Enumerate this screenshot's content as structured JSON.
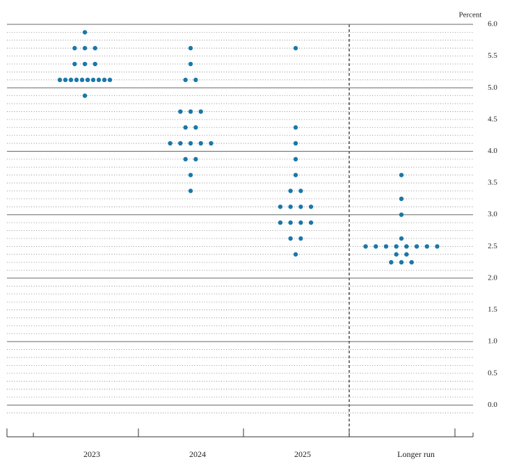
{
  "chart_data": {
    "type": "dot",
    "y_label": "Percent",
    "categories": [
      "2023",
      "2024",
      "2025",
      "Longer run"
    ],
    "values": [
      [
        5.875,
        5.625,
        5.625,
        5.625,
        5.375,
        5.375,
        5.375,
        5.125,
        5.125,
        5.125,
        5.125,
        5.125,
        5.125,
        5.125,
        5.125,
        5.125,
        5.125,
        4.875
      ],
      [
        5.625,
        5.375,
        5.125,
        5.125,
        4.625,
        4.625,
        4.625,
        4.375,
        4.375,
        4.125,
        4.125,
        4.125,
        4.125,
        4.125,
        3.875,
        3.875,
        3.625,
        3.375
      ],
      [
        5.625,
        4.375,
        4.125,
        3.875,
        3.625,
        3.375,
        3.375,
        3.125,
        3.125,
        3.125,
        3.125,
        2.875,
        2.875,
        2.875,
        2.875,
        2.625,
        2.625,
        2.375
      ],
      [
        3.625,
        3.25,
        3.0,
        2.625,
        2.5,
        2.5,
        2.5,
        2.5,
        2.5,
        2.5,
        2.5,
        2.5,
        2.375,
        2.375,
        2.25,
        2.25,
        2.25
      ]
    ],
    "color": "#1a78a8",
    "ylim": [
      -0.5,
      6.0
    ],
    "yticks": [
      {
        "value": 6,
        "label": "6.0"
      },
      5.5,
      {
        "value": 5,
        "label": "5.0"
      },
      4.5,
      {
        "value": 4,
        "label": "4.0"
      },
      3.5,
      {
        "value": 3,
        "label": "3.0"
      },
      2.5,
      {
        "value": 2,
        "label": "2.0"
      },
      1.5,
      {
        "value": 1,
        "label": "1.0"
      },
      0.5,
      {
        "value": 0,
        "label": "0.0"
      }
    ],
    "minor_yticks": [
      5.875,
      5.75,
      5.625,
      5.375,
      5.25,
      5.125,
      4.875,
      4.75,
      4.625,
      4.375,
      4.25,
      4.125,
      3.875,
      3.75,
      3.625,
      3.375,
      3.25,
      3.125,
      2.875,
      2.75,
      2.625,
      2.375,
      2.25,
      2.125,
      1.875,
      1.75,
      1.625,
      1.375,
      1.25,
      1.125,
      0.875,
      0.75,
      0.625,
      0.375,
      0.25,
      0.125,
      -0.125
    ],
    "grid": true
  }
}
